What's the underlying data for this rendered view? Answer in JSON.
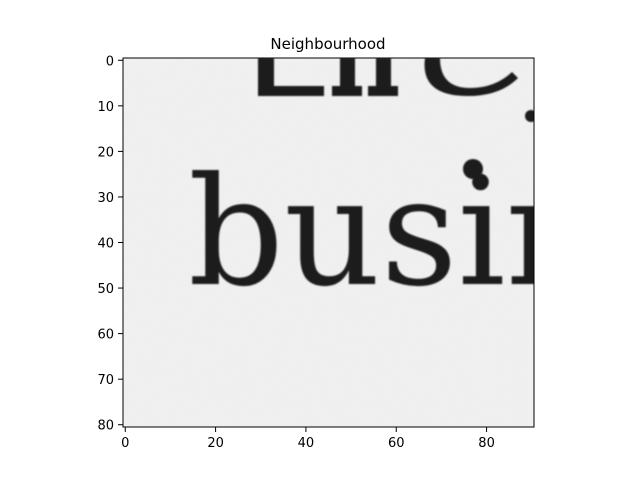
{
  "title": "Neighbourhood",
  "image": {
    "content_text": "The busin",
    "background_color": "#f1f1f1",
    "ink_color": "#1c1c1c"
  },
  "axes": {
    "x_ticks": [
      0,
      20,
      40,
      60,
      80
    ],
    "y_ticks": [
      0,
      10,
      20,
      30,
      40,
      50,
      60,
      70,
      80
    ],
    "x_range": [
      0,
      91
    ],
    "y_range": [
      0,
      81
    ]
  }
}
